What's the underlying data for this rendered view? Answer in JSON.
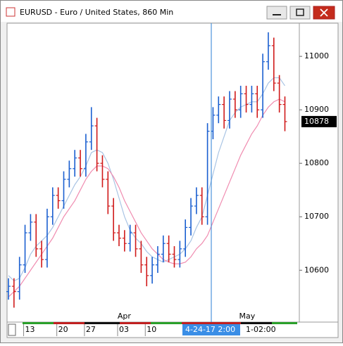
{
  "chart_data": {
    "type": "ohlc",
    "title": "EURUSD - Euro / United States, 860 Min",
    "categories": [
      null,
      null,
      null,
      "13",
      null,
      null,
      null,
      null,
      null,
      "20",
      null,
      null,
      null,
      null,
      "27",
      null,
      null,
      null,
      null,
      null,
      "03",
      null,
      null,
      null,
      null,
      "10",
      null,
      null,
      null,
      null,
      null,
      null,
      null,
      null,
      null,
      null,
      null,
      null,
      null,
      null,
      null,
      null,
      null,
      null,
      null,
      null,
      null,
      null,
      null,
      null,
      null
    ],
    "months": [
      null,
      null,
      null,
      null,
      null,
      null,
      null,
      null,
      null,
      null,
      null,
      null,
      null,
      null,
      null,
      null,
      null,
      null,
      null,
      null,
      null,
      "Apr",
      null,
      null,
      null,
      null,
      null,
      null,
      null,
      null,
      null,
      null,
      null,
      null,
      null,
      null,
      null,
      null,
      null,
      null,
      null,
      null,
      null,
      "May",
      null,
      null,
      null,
      null,
      null,
      null,
      null
    ],
    "open": [
      10560,
      10570,
      10560,
      10610,
      10670,
      10690,
      10640,
      10620,
      10700,
      10740,
      10730,
      10770,
      10790,
      10810,
      10790,
      10840,
      10870,
      10800,
      10770,
      10720,
      10670,
      10660,
      10650,
      10670,
      10640,
      10610,
      10590,
      10610,
      10630,
      10650,
      10630,
      10620,
      10640,
      10680,
      10720,
      10740,
      10700,
      10860,
      10890,
      10910,
      10880,
      10920,
      10900,
      10930,
      10910,
      10930,
      10900,
      10990,
      11020,
      10950,
      10910
    ],
    "high": [
      10585,
      10585,
      10625,
      10685,
      10705,
      10705,
      10655,
      10715,
      10755,
      10755,
      10785,
      10805,
      10825,
      10825,
      10855,
      10905,
      10885,
      10815,
      10785,
      10735,
      10685,
      10675,
      10685,
      10685,
      10655,
      10625,
      10625,
      10645,
      10665,
      10665,
      10645,
      10655,
      10695,
      10735,
      10755,
      10755,
      10875,
      10905,
      10925,
      10925,
      10935,
      10935,
      10945,
      10945,
      10945,
      10945,
      11005,
      11045,
      11035,
      10965,
      10925
    ],
    "low": [
      10545,
      10530,
      10545,
      10595,
      10655,
      10625,
      10605,
      10605,
      10685,
      10715,
      10715,
      10755,
      10775,
      10775,
      10775,
      10825,
      10785,
      10755,
      10705,
      10655,
      10645,
      10635,
      10635,
      10625,
      10595,
      10570,
      10575,
      10595,
      10615,
      10615,
      10605,
      10605,
      10625,
      10665,
      10705,
      10685,
      10685,
      10845,
      10875,
      10865,
      10865,
      10885,
      10885,
      10895,
      10895,
      10885,
      10885,
      10975,
      10935,
      10895,
      10860
    ],
    "close": [
      10570,
      10560,
      10610,
      10670,
      10690,
      10640,
      10620,
      10700,
      10740,
      10730,
      10770,
      10790,
      10810,
      10790,
      10840,
      10870,
      10800,
      10770,
      10720,
      10670,
      10660,
      10650,
      10670,
      10640,
      10610,
      10590,
      10610,
      10630,
      10650,
      10630,
      10620,
      10640,
      10680,
      10720,
      10740,
      10700,
      10860,
      10890,
      10910,
      10880,
      10920,
      10900,
      10930,
      10910,
      10930,
      10900,
      10990,
      11020,
      10950,
      10910,
      10878
    ],
    "up_color": "#1a5fd0",
    "down_color": "#d01a1a",
    "overlays": [
      {
        "color": "#a9c4e4",
        "values": [
          10590,
          10580,
          10585,
          10605,
          10630,
          10645,
          10655,
          10665,
          10680,
          10700,
          10720,
          10740,
          10760,
          10775,
          10795,
          10820,
          10825,
          10820,
          10800,
          10770,
          10735,
          10700,
          10675,
          10660,
          10650,
          10635,
          10625,
          10620,
          10615,
          10620,
          10625,
          10630,
          10640,
          10655,
          10680,
          10700,
          10740,
          10780,
          10820,
          10850,
          10880,
          10895,
          10905,
          10910,
          10915,
          10915,
          10930,
          10950,
          10960,
          10960,
          10945
        ]
      },
      {
        "color": "#f08cb0",
        "values": [
          10550,
          10560,
          10570,
          10585,
          10600,
          10615,
          10630,
          10645,
          10660,
          10680,
          10700,
          10715,
          10730,
          10750,
          10770,
          10785,
          10795,
          10795,
          10790,
          10775,
          10755,
          10730,
          10710,
          10690,
          10670,
          10655,
          10640,
          10630,
          10620,
          10615,
          10612,
          10612,
          10615,
          10625,
          10640,
          10650,
          10665,
          10690,
          10715,
          10740,
          10765,
          10790,
          10815,
          10835,
          10855,
          10870,
          10890,
          10905,
          10915,
          10920,
          10915
        ]
      }
    ],
    "ylim": [
      10503,
      11062
    ],
    "yticks": [
      10600,
      10700,
      10800,
      10900,
      11000
    ],
    "last_price": 10878,
    "crosshair_label": "4-24-17  2:00",
    "timezone_label": "1-02:00"
  }
}
